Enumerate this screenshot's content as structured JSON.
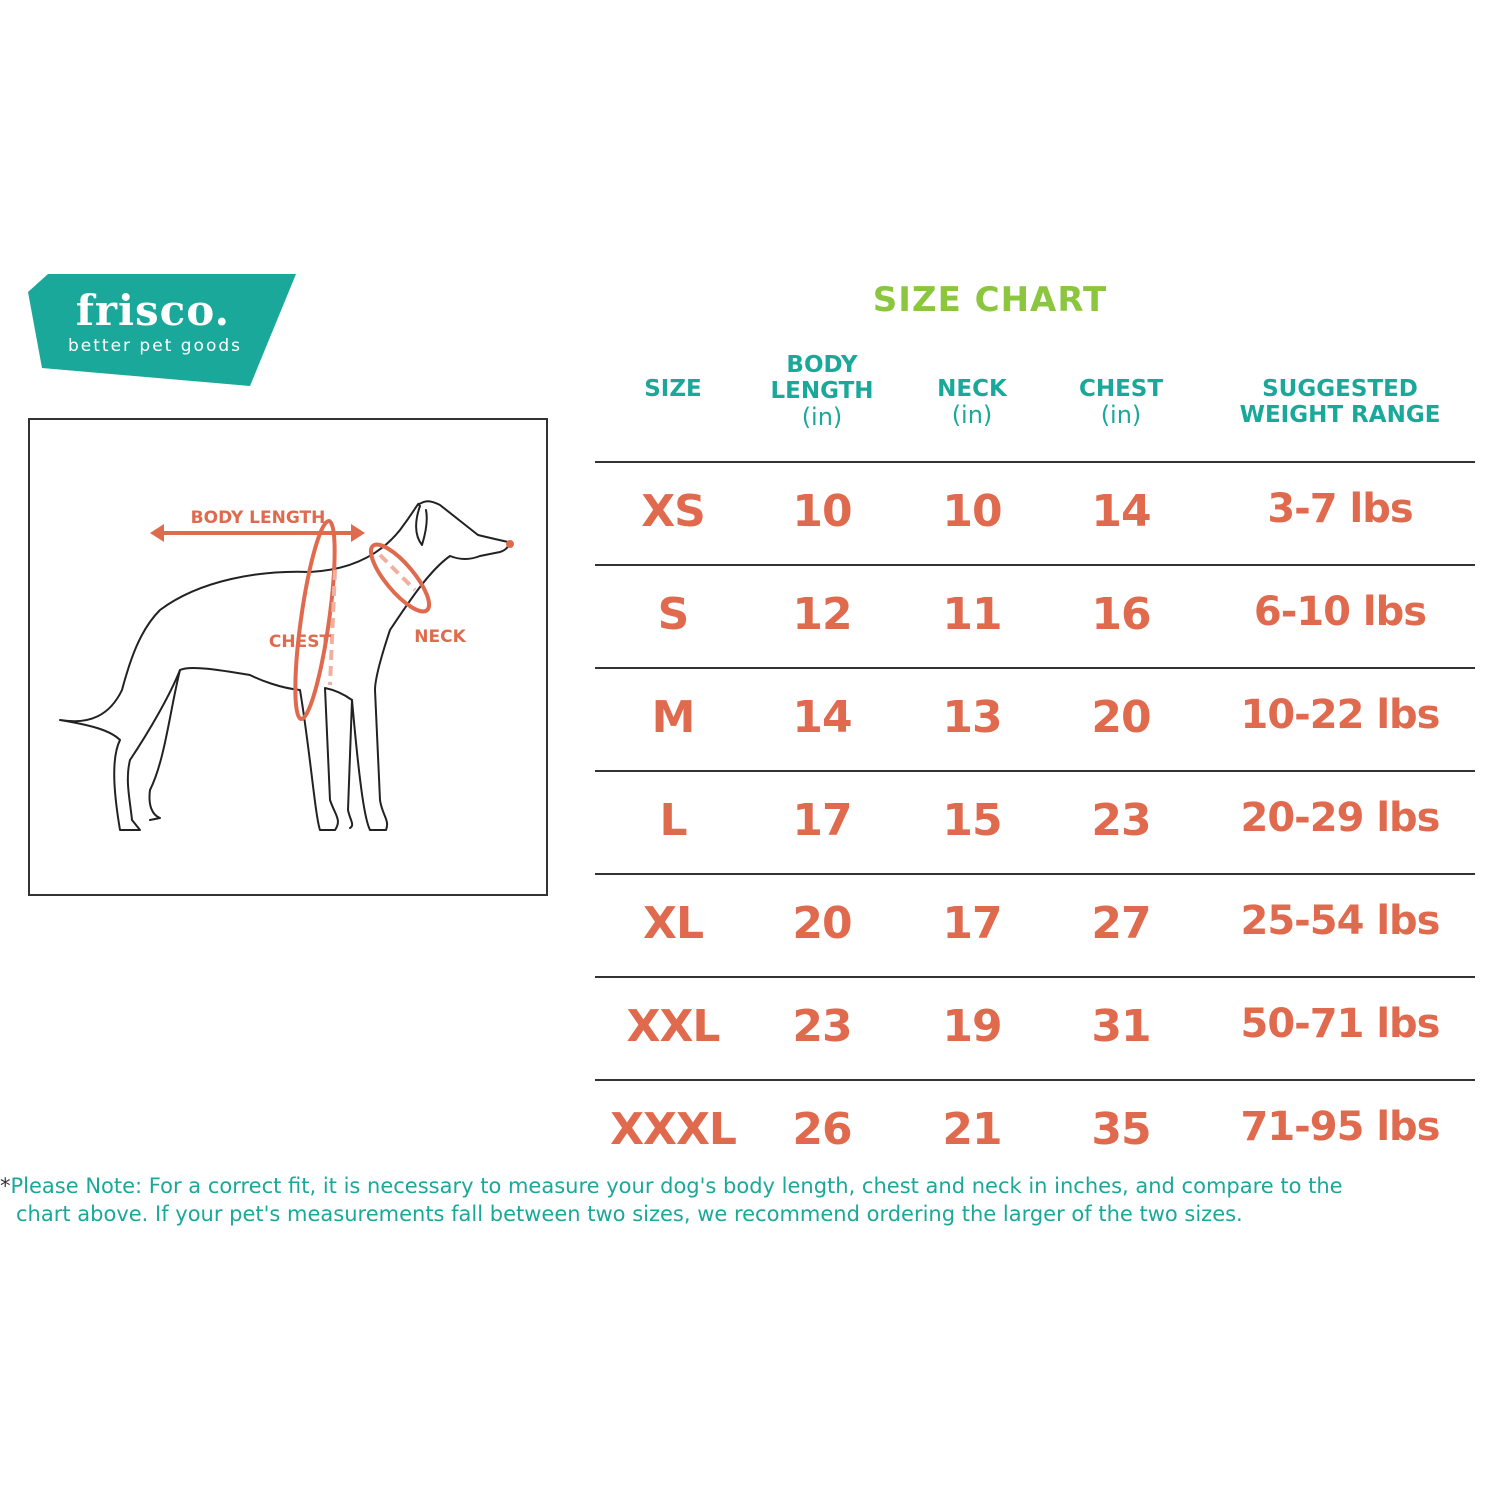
{
  "logo": {
    "brand": "frisco.",
    "tagline": "better pet goods",
    "color": "#1aa89a"
  },
  "diagram": {
    "labels": {
      "body_length": "BODY LENGTH",
      "chest": "CHEST",
      "neck": "NECK"
    },
    "color": "#e06a4e"
  },
  "chart": {
    "title": "SIZE  CHART",
    "headers": [
      {
        "label": "SIZE",
        "unit": ""
      },
      {
        "label": "BODY LENGTH",
        "unit": "(in)"
      },
      {
        "label": "NECK",
        "unit": "(in)"
      },
      {
        "label": "CHEST",
        "unit": "(in)"
      },
      {
        "label": "SUGGESTED WEIGHT RANGE",
        "unit": ""
      }
    ],
    "rows": [
      [
        "XS",
        "10",
        "10",
        "14",
        "3-7 lbs"
      ],
      [
        "S",
        "12",
        "11",
        "16",
        "6-10 lbs"
      ],
      [
        "M",
        "14",
        "13",
        "20",
        "10-22 lbs"
      ],
      [
        "L",
        "17",
        "15",
        "23",
        "20-29 lbs"
      ],
      [
        "XL",
        "20",
        "17",
        "27",
        "25-54 lbs"
      ],
      [
        "XXL",
        "23",
        "19",
        "31",
        "50-71 lbs"
      ],
      [
        "XXXL",
        "26",
        "21",
        "35",
        "71-95 lbs"
      ]
    ],
    "colors": {
      "title": "#8cc63f",
      "header": "#1aa89a",
      "values": "#e06a4e"
    }
  },
  "note": {
    "asterisk": "*",
    "line1": "Please Note: For a correct fit, it is necessary to measure your dog's body length, chest and neck in inches, and compare to the",
    "line2": "chart above. If your pet's measurements fall between two sizes, we recommend ordering the larger of the two sizes."
  }
}
